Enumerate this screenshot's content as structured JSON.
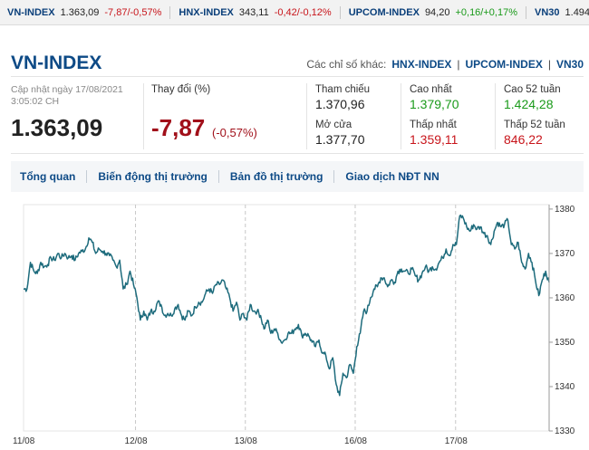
{
  "ticker": [
    {
      "name": "VN-INDEX",
      "value": "1.363,09",
      "change": "-7,87/-0,57%",
      "dir": "neg"
    },
    {
      "name": "HNX-INDEX",
      "value": "343,11",
      "change": "-0,42/-0,12%",
      "dir": "neg"
    },
    {
      "name": "UPCOM-INDEX",
      "value": "94,20",
      "change": "+0,16/+0,17%",
      "dir": "pos"
    },
    {
      "name": "VN30",
      "value": "1.494,",
      "change": "",
      "dir": "neg"
    }
  ],
  "header": {
    "title": "VN-INDEX",
    "others_label": "Các chỉ số khác:",
    "others": [
      "HNX-INDEX",
      "UPCOM-INDEX",
      "VN30"
    ]
  },
  "summary": {
    "update_label": "Cập nhật ngày 17/08/2021",
    "update_time": "3:05:02 CH",
    "value": "1.363,09",
    "change_label": "Thay đổi (%)",
    "change": "-7,87",
    "change_pct": "(-0,57%)"
  },
  "stats": {
    "ref_label": "Tham chiếu",
    "ref": "1.370,96",
    "open_label": "Mở cửa",
    "open": "1.377,70",
    "high_label": "Cao nhất",
    "high": "1.379,70",
    "low_label": "Thấp nhất",
    "low": "1.359,11",
    "high52_label": "Cao 52 tuần",
    "high52": "1.424,28",
    "low52_label": "Thấp 52 tuần",
    "low52": "846,22"
  },
  "tabs": [
    "Tổng quan",
    "Biến động thị trường",
    "Bản đồ thị trường",
    "Giao dịch NĐT NN"
  ],
  "colors": {
    "line": "#1d6b7c",
    "negative": "#c8151b",
    "positive": "#1a9a1a",
    "brand": "#0d4a86"
  },
  "chart_data": {
    "type": "line",
    "x_ticks": [
      "11/08",
      "12/08",
      "13/08",
      "16/08",
      "17/08"
    ],
    "y_ticks": [
      1330,
      1340,
      1350,
      1360,
      1370,
      1380
    ],
    "ylim": [
      1330,
      1381
    ],
    "grid": "vertical dashed",
    "series": [
      {
        "values": [
          1362.0,
          1362.0,
          1368.0,
          1366.0,
          1365.5,
          1368.0,
          1367.0,
          1367.5,
          1369.0,
          1368.5,
          1370.0,
          1369.0,
          1370.0,
          1369.0,
          1369.5,
          1368.5,
          1370.0,
          1370.5,
          1371.0,
          1373.5,
          1372.5,
          1370.0,
          1371.0,
          1370.5,
          1370.0,
          1369.5,
          1368.5,
          1367.0,
          1368.5,
          1362.0,
          1363.0,
          1366.0,
          1363.0,
          1360.0,
          1355.0,
          1357.0,
          1355.0,
          1357.0,
          1357.0,
          1359.0,
          1358.5,
          1356.0,
          1356.5,
          1356.0,
          1357.5,
          1358.5,
          1356.0,
          1355.0,
          1357.0,
          1356.0,
          1358.0,
          1359.0,
          1359.0,
          1361.0,
          1362.0,
          1361.0,
          1363.0,
          1363.0,
          1364.0,
          1362.0,
          1360.0,
          1357.0,
          1359.0,
          1355.0,
          1356.5,
          1355.0,
          1358.5,
          1357.0,
          1357.0,
          1356.0,
          1353.0,
          1355.0,
          1352.0,
          1353.0,
          1352.0,
          1350.0,
          1350.5,
          1352.0,
          1352.0,
          1353.0,
          1354.0,
          1351.5,
          1352.0,
          1351.5,
          1350.0,
          1349.0,
          1350.5,
          1347.5,
          1347.0,
          1344.0,
          1346.5,
          1340.5,
          1338.0,
          1343.0,
          1342.0,
          1345.0,
          1343.0,
          1349.0,
          1352.0,
          1357.0,
          1357.0,
          1360.0,
          1362.0,
          1362.5,
          1364.5,
          1364.5,
          1362.5,
          1364.0,
          1363.5,
          1366.0,
          1366.5,
          1366.0,
          1365.5,
          1366.5,
          1365.0,
          1364.0,
          1365.5,
          1367.0,
          1366.0,
          1367.0,
          1366.5,
          1368.0,
          1369.0,
          1371.0,
          1369.5,
          1372.0,
          1372.0,
          1378.5,
          1378.0,
          1376.0,
          1375.0,
          1376.5,
          1375.5,
          1376.0,
          1374.5,
          1374.0,
          1372.0,
          1375.0,
          1377.0,
          1376.0,
          1376.5,
          1377.5,
          1372.0,
          1371.0,
          1372.5,
          1368.0,
          1366.5,
          1370.0,
          1368.0,
          1364.0,
          1360.5,
          1364.0,
          1366.0,
          1363.5
        ]
      }
    ]
  }
}
